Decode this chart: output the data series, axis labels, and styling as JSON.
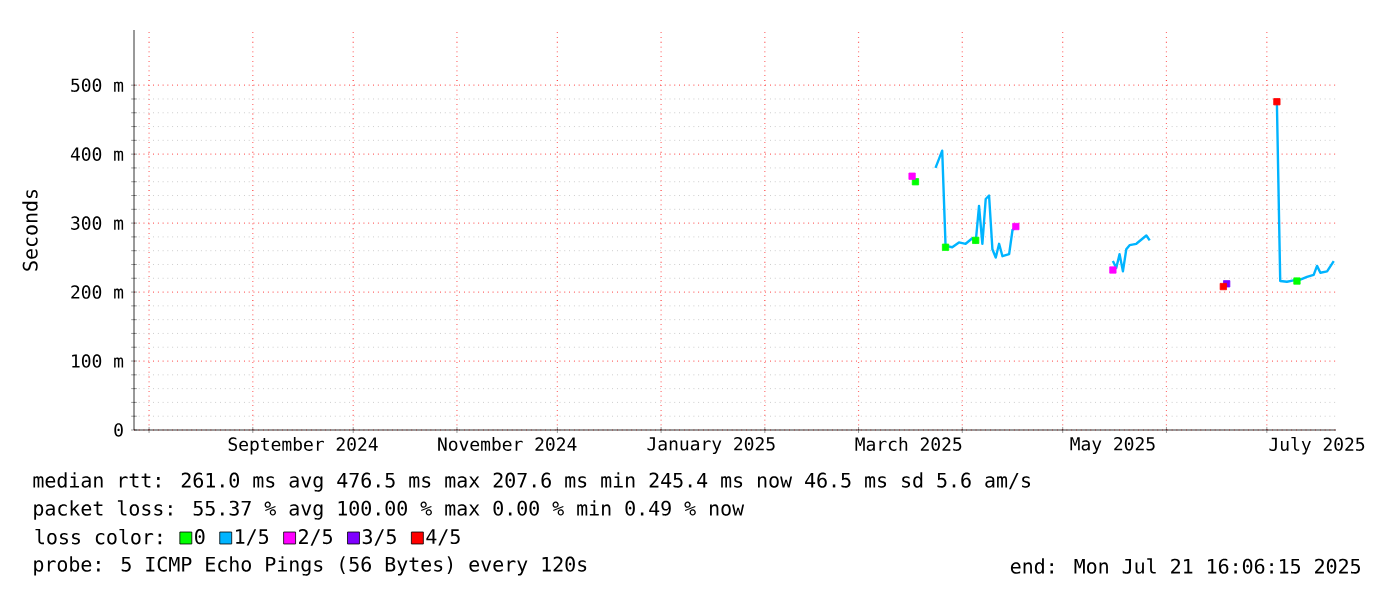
{
  "chart_data": {
    "type": "line",
    "ylabel": "Seconds",
    "legend_title": "loss color:",
    "legend": "bottom",
    "grid": true,
    "xlim": [
      "2024-07-27T12:00",
      "2025-07-21T16:06"
    ],
    "xticks": [
      {
        "value": "2024-08-01",
        "label": null
      },
      {
        "value": "2024-09-01",
        "label": null
      },
      {
        "value": "2024-10-01",
        "label": null
      },
      {
        "value": "2024-11-01",
        "label": null
      },
      {
        "value": "2024-12-01",
        "label": null
      },
      {
        "value": "2025-01-01",
        "label": null
      },
      {
        "value": "2025-02-01",
        "label": null
      },
      {
        "value": "2025-03-01",
        "label": null
      },
      {
        "value": "2025-04-01",
        "label": null
      },
      {
        "value": "2025-05-01",
        "label": null
      },
      {
        "value": "2025-06-01",
        "label": null
      },
      {
        "value": "2025-07-01",
        "label": null
      },
      {
        "value": "2024-09-16",
        "label": "September 2024"
      },
      {
        "value": "2024-11-16",
        "label": "November 2024"
      },
      {
        "value": "2025-01-16",
        "label": "January 2025"
      },
      {
        "value": "2025-03-16",
        "label": "March 2025"
      },
      {
        "value": "2025-05-16",
        "label": "May 2025"
      },
      {
        "value": "2025-07-16",
        "label": "July 2025"
      }
    ],
    "ylim": [
      0,
      580
    ],
    "yticks": [
      0,
      {
        "value": 100,
        "label": "100 m"
      },
      {
        "value": 200,
        "label": "200 m"
      },
      {
        "value": 300,
        "label": "300 m"
      },
      {
        "value": 400,
        "label": "400 m"
      },
      {
        "value": 500,
        "label": "500 m"
      }
    ],
    "series": [
      {
        "name": "0",
        "type": "scatter",
        "marker": "square",
        "color": "#00ff00",
        "x": [
          "2025-03-18",
          "2025-03-27",
          "2025-04-05",
          "2025-07-10"
        ],
        "values": [
          360,
          265,
          275,
          216
        ]
      },
      {
        "name": "1/5",
        "color": "#00b4ff",
        "x": [
          "2025-03-24",
          "2025-03-26",
          "2025-03-27",
          "2025-03-29",
          "2025-03-31",
          "2025-04-02",
          "2025-04-04",
          "2025-04-05",
          "2025-04-06",
          "2025-04-07",
          "2025-04-08",
          "2025-04-09",
          "2025-04-10",
          "2025-04-11",
          "2025-04-12",
          "2025-04-13",
          "2025-04-15",
          "2025-04-16",
          "2025-04-17",
          "2025-04-20",
          "2025-05-16",
          "2025-05-17",
          "2025-05-18",
          "2025-05-19",
          "2025-05-20",
          "2025-05-21",
          "2025-05-23",
          "2025-05-25",
          "2025-05-26",
          "2025-05-27",
          "2025-05-30",
          "2025-07-04",
          "2025-07-05",
          "2025-07-07",
          "2025-07-09",
          "2025-07-11",
          "2025-07-13",
          "2025-07-15",
          "2025-07-16",
          "2025-07-17",
          "2025-07-19",
          "2025-07-21"
        ],
        "values": [
          380,
          405,
          267,
          265,
          272,
          270,
          278,
          272,
          325,
          270,
          335,
          340,
          262,
          250,
          270,
          252,
          255,
          290,
          294,
          null,
          245,
          235,
          255,
          230,
          262,
          268,
          270,
          278,
          282,
          275,
          null,
          476,
          216,
          215,
          217,
          218,
          222,
          225,
          238,
          228,
          230,
          245
        ]
      },
      {
        "name": "2/5",
        "type": "scatter",
        "marker": "square",
        "color": "#ff00ff",
        "x": [
          "2025-03-17",
          "2025-04-17",
          "2025-05-16"
        ],
        "values": [
          368,
          295,
          232
        ]
      },
      {
        "name": "3/5",
        "type": "scatter",
        "marker": "square",
        "color": "#7f00ff",
        "x": [
          "2025-06-19"
        ],
        "values": [
          212
        ]
      },
      {
        "name": "4/5",
        "type": "scatter",
        "marker": "square",
        "color": "#ff0000",
        "x": [
          "2025-06-18",
          "2025-07-04"
        ],
        "values": [
          208,
          476
        ]
      }
    ],
    "annotations": [
      "median rtt: 261.0 ms avg 476.5 ms max 207.6 ms min 245.4 ms now 46.5 ms sd 5.6 am/s",
      "packet loss: 55.37 % avg 100.00 % max 0.00 % min 0.49 % now",
      "probe: 5 ICMP Echo Pings (56 Bytes) every 120s",
      "end: Mon Jul 21 16:06:15 2025"
    ]
  }
}
